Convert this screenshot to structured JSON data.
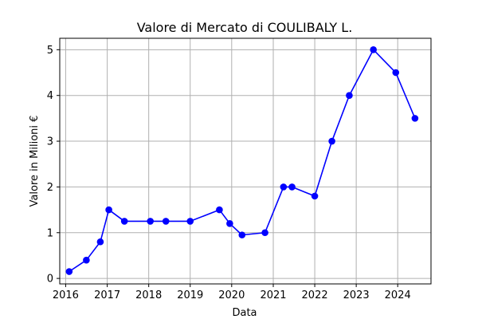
{
  "chart_data": {
    "type": "line",
    "title": "Valore di Mercato di COULIBALY L.",
    "xlabel": "Data",
    "ylabel": "Valore in Milioni €",
    "xlim": [
      "2015-11-10",
      "2024-10-20"
    ],
    "ylim": [
      -0.12,
      5.25
    ],
    "x_ticks": [
      "2016",
      "2017",
      "2018",
      "2019",
      "2020",
      "2021",
      "2022",
      "2023",
      "2024"
    ],
    "y_ticks": [
      "0",
      "1",
      "2",
      "3",
      "4",
      "5"
    ],
    "grid": true,
    "series": [
      {
        "color": "#0000ff",
        "marker": "circle",
        "points": [
          {
            "x": "2016-02-01",
            "y": 0.15
          },
          {
            "x": "2016-07-01",
            "y": 0.4
          },
          {
            "x": "2016-11-01",
            "y": 0.8
          },
          {
            "x": "2017-01-15",
            "y": 1.5
          },
          {
            "x": "2017-06-01",
            "y": 1.25
          },
          {
            "x": "2018-01-15",
            "y": 1.25
          },
          {
            "x": "2018-06-01",
            "y": 1.25
          },
          {
            "x": "2019-01-01",
            "y": 1.25
          },
          {
            "x": "2019-09-15",
            "y": 1.5
          },
          {
            "x": "2019-12-15",
            "y": 1.2
          },
          {
            "x": "2020-04-01",
            "y": 0.95
          },
          {
            "x": "2020-10-20",
            "y": 1.0
          },
          {
            "x": "2021-04-01",
            "y": 2.0
          },
          {
            "x": "2021-06-15",
            "y": 2.0
          },
          {
            "x": "2022-01-01",
            "y": 1.8
          },
          {
            "x": "2022-06-01",
            "y": 3.0
          },
          {
            "x": "2022-11-01",
            "y": 4.0
          },
          {
            "x": "2023-06-01",
            "y": 5.0
          },
          {
            "x": "2023-12-15",
            "y": 4.5
          },
          {
            "x": "2024-06-01",
            "y": 3.5
          }
        ]
      }
    ]
  }
}
